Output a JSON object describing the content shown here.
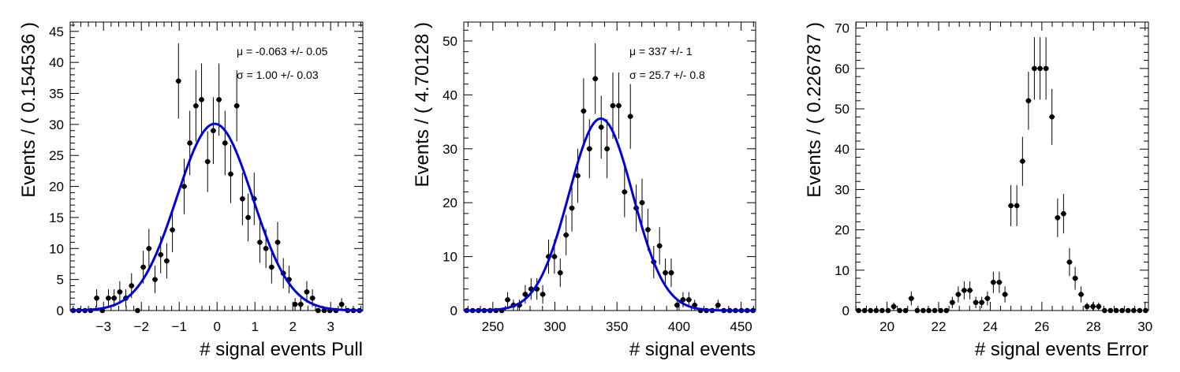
{
  "chart_data": [
    {
      "type": "scatter",
      "xlabel": "# signal events Pull",
      "ylabel": "Events / ( 0.154536 )",
      "xlim": [
        -3.88,
        3.85
      ],
      "ylim": [
        0,
        46.5
      ],
      "xticks": [
        -3,
        -2,
        -1,
        0,
        1,
        2,
        3
      ],
      "yticks": [
        0,
        5,
        10,
        15,
        20,
        25,
        30,
        35,
        40,
        45
      ],
      "stats": [
        "μ = -0.063 +/- 0.05",
        "σ =  1.00 +/- 0.03"
      ],
      "fit": {
        "type": "gaussian",
        "mean": -0.063,
        "sigma": 1.0,
        "amplitude": 30.1
      },
      "x": [
        -3.8,
        -3.65,
        -3.49,
        -3.34,
        -3.18,
        -3.03,
        -2.87,
        -2.72,
        -2.57,
        -2.41,
        -2.26,
        -2.1,
        -1.95,
        -1.8,
        -1.64,
        -1.49,
        -1.33,
        -1.18,
        -1.02,
        -0.87,
        -0.72,
        -0.56,
        -0.41,
        -0.25,
        -0.1,
        0.05,
        0.21,
        0.36,
        0.52,
        0.67,
        0.82,
        0.98,
        1.13,
        1.29,
        1.44,
        1.6,
        1.75,
        1.9,
        2.06,
        2.21,
        2.37,
        2.52,
        2.67,
        2.83,
        2.98,
        3.14,
        3.29,
        3.45,
        3.6,
        3.76
      ],
      "values": [
        0,
        0,
        0,
        0,
        2,
        0,
        2,
        2,
        3,
        2,
        4,
        0,
        7,
        10,
        5,
        9,
        8,
        13,
        37,
        20,
        27,
        33,
        34,
        24,
        29,
        34,
        27,
        22,
        33,
        18,
        15,
        18,
        11,
        10,
        7,
        11,
        6,
        5,
        1,
        1,
        3,
        2,
        0,
        0,
        0,
        0,
        1,
        0,
        0,
        0
      ]
    },
    {
      "type": "scatter",
      "xlabel": "# signal events",
      "ylabel": "Events / ( 4.70128 )",
      "xlim": [
        226.6,
        461.7
      ],
      "ylim": [
        0,
        53.5
      ],
      "xticks": [
        250,
        300,
        350,
        400,
        450
      ],
      "yticks": [
        0,
        10,
        20,
        30,
        40,
        50
      ],
      "stats": [
        "μ =  337 +/- 1",
        "σ =  25.7 +/- 0.8"
      ],
      "fit": {
        "type": "gaussian",
        "mean": 337,
        "sigma": 25.7,
        "amplitude": 35.6
      },
      "x": [
        229.0,
        233.7,
        238.4,
        243.1,
        247.8,
        252.5,
        257.2,
        261.9,
        266.6,
        271.4,
        276.1,
        280.8,
        285.5,
        290.2,
        294.9,
        299.6,
        304.3,
        309.0,
        313.7,
        318.4,
        323.1,
        327.8,
        332.5,
        337.3,
        342.0,
        346.7,
        351.4,
        356.1,
        360.8,
        365.5,
        370.2,
        374.9,
        379.6,
        384.3,
        389.0,
        393.7,
        398.4,
        403.2,
        407.9,
        412.6,
        417.3,
        422.0,
        426.7,
        431.4,
        436.1,
        440.8,
        445.5,
        450.2,
        454.9,
        459.6
      ],
      "values": [
        0,
        0,
        0,
        0,
        0,
        0,
        0,
        2,
        1,
        1,
        3,
        4,
        4,
        3,
        10,
        10,
        7,
        14,
        19,
        25,
        37,
        30,
        43,
        34,
        30,
        38,
        38,
        22,
        36,
        19,
        20,
        15,
        9,
        12,
        7,
        7,
        1,
        2,
        2,
        1,
        0,
        0,
        0,
        1,
        0,
        0,
        0,
        0,
        0,
        0
      ]
    },
    {
      "type": "scatter",
      "xlabel": "# signal events Error",
      "ylabel": "Events / ( 0.226787 )",
      "xlim": [
        18.79,
        30.13
      ],
      "ylim": [
        0,
        71.5
      ],
      "xticks": [
        20,
        22,
        24,
        26,
        28,
        30
      ],
      "yticks": [
        0,
        10,
        20,
        30,
        40,
        50,
        60,
        70
      ],
      "stats": [],
      "x": [
        18.9,
        19.13,
        19.36,
        19.58,
        19.81,
        20.04,
        20.26,
        20.49,
        20.72,
        20.94,
        21.17,
        21.4,
        21.62,
        21.85,
        22.08,
        22.3,
        22.53,
        22.76,
        22.99,
        23.21,
        23.44,
        23.67,
        23.89,
        24.12,
        24.35,
        24.57,
        24.8,
        25.03,
        25.25,
        25.48,
        25.71,
        25.93,
        26.16,
        26.39,
        26.61,
        26.84,
        27.07,
        27.29,
        27.52,
        27.75,
        27.98,
        28.2,
        28.43,
        28.66,
        28.88,
        29.11,
        29.34,
        29.56,
        29.79,
        30.02
      ],
      "values": [
        0,
        0,
        0,
        0,
        0,
        0,
        1,
        0,
        0,
        3,
        0,
        0,
        0,
        0,
        0,
        0,
        2,
        4,
        5,
        5,
        2,
        2,
        3,
        7,
        7,
        4,
        26,
        26,
        37,
        52,
        60,
        60,
        60,
        48,
        23,
        24,
        12,
        8,
        4,
        1,
        1,
        1,
        0,
        0,
        0,
        0,
        0,
        0,
        0,
        0
      ]
    }
  ]
}
